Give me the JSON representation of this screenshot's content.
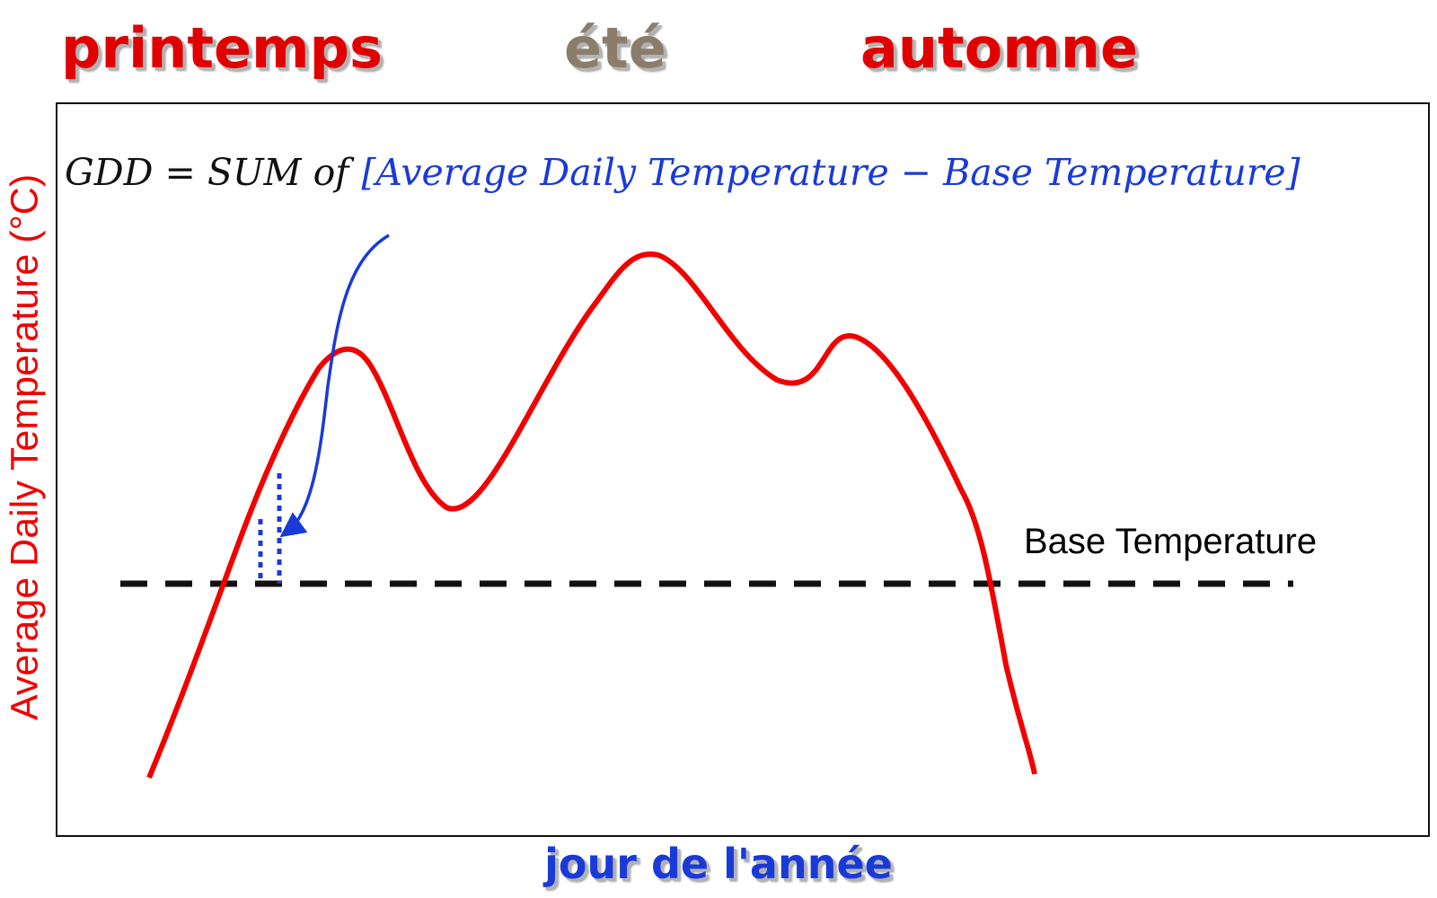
{
  "seasons": [
    {
      "label": "printemps",
      "color": "#e00000"
    },
    {
      "label": "été",
      "color": "#8b7d6b"
    },
    {
      "label": "automne",
      "color": "#e00000"
    }
  ],
  "formula": {
    "left_part": "GDD = SUM of",
    "bracket_part": "[Average Daily Temperature  − Base Temperature]",
    "left_color": "#111111",
    "bracket_color": "#1a3ad8"
  },
  "y_axis_title": "Average Daily Temperature (°C)",
  "x_axis_title": "jour de l'année",
  "base_temperature_label": "Base Temperature",
  "colors": {
    "curve": "#f20000",
    "base_line": "#111111",
    "annotation": "#1a3ad8",
    "y_axis_title": "#f20000",
    "x_axis_title": "#1a3ad8"
  },
  "chart_data": {
    "type": "line",
    "series": [
      {
        "x": [
          0,
          4,
          8,
          13,
          18,
          23,
          27,
          31,
          36,
          43,
          48,
          53,
          58,
          63,
          68,
          72,
          77,
          81,
          86,
          90,
          94,
          98,
          100
        ],
        "y": [
          -40,
          -10,
          20,
          45,
          65,
          100,
          65,
          60,
          80,
          125,
          105,
          90,
          85,
          105,
          90,
          70,
          45,
          0,
          -30,
          -40,
          -40,
          -40,
          -40
        ]
      }
    ],
    "base_temperature": 0,
    "xlabel": "jour de l'année",
    "ylabel": "Average Daily Temperature (°C)",
    "legend": "none",
    "grid": false
  }
}
